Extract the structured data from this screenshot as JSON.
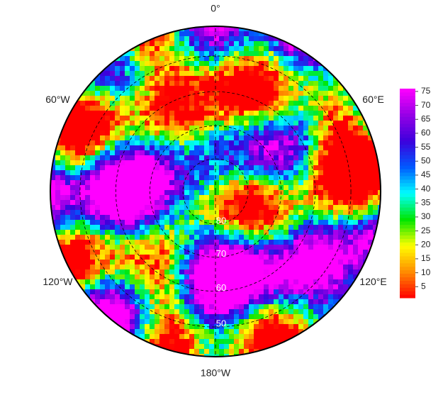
{
  "map": {
    "longitudes": [
      {
        "value": 0,
        "label": "0°"
      },
      {
        "value": 60,
        "label": "60°E"
      },
      {
        "value": 120,
        "label": "120°E"
      },
      {
        "value": 180,
        "label": "180°W"
      },
      {
        "value": -120,
        "label": "120°W"
      },
      {
        "value": -60,
        "label": "60°W"
      }
    ],
    "latitudes": [
      80,
      70,
      60,
      50
    ],
    "colorbar": {
      "lim": [
        1,
        76
      ],
      "ticks": [
        5,
        10,
        15,
        20,
        25,
        30,
        35,
        40,
        45,
        50,
        55,
        60,
        65,
        70,
        75
      ]
    }
  }
}
